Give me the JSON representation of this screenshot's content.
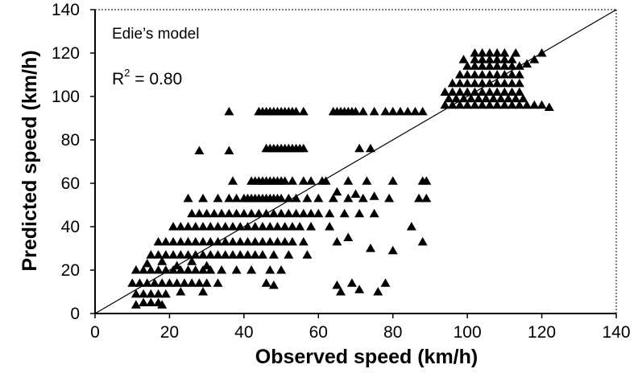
{
  "chart_data": {
    "type": "scatter",
    "annotation_model": "Edie’s model",
    "annotation_r2_prefix": "R",
    "annotation_r2_sup": "2",
    "annotation_r2_value": " = 0.80",
    "xlabel": "Observed speed  (km/h)",
    "ylabel": "Predicted speed (km/h)",
    "xlim": [
      0,
      140
    ],
    "ylim": [
      0,
      140
    ],
    "xticks": [
      0,
      20,
      40,
      60,
      80,
      100,
      120,
      140
    ],
    "yticks": [
      0,
      20,
      40,
      60,
      80,
      100,
      120,
      140
    ],
    "grid": false,
    "reference_line": {
      "from": [
        0,
        0
      ],
      "to": [
        140,
        140
      ]
    },
    "marker": "triangle",
    "colors": {
      "marker": "#000000",
      "axis": "#000000",
      "line": "#000000"
    },
    "series": [
      {
        "points": [
          [
            36,
            93
          ],
          [
            44,
            93
          ],
          [
            45,
            93
          ],
          [
            46,
            93
          ],
          [
            47,
            93
          ],
          [
            48,
            93
          ],
          [
            49,
            93
          ],
          [
            50,
            93
          ],
          [
            51,
            93
          ],
          [
            52,
            93
          ],
          [
            53,
            93
          ],
          [
            54,
            93
          ],
          [
            56,
            93
          ],
          [
            64,
            93
          ],
          [
            65,
            93
          ],
          [
            66,
            93
          ],
          [
            67,
            93
          ],
          [
            68,
            93
          ],
          [
            69,
            93
          ],
          [
            70,
            93
          ],
          [
            72,
            93
          ],
          [
            75,
            93
          ],
          [
            78,
            93
          ],
          [
            80,
            93
          ],
          [
            82,
            93
          ],
          [
            84,
            93
          ],
          [
            86,
            93
          ],
          [
            88,
            93
          ],
          [
            28,
            75
          ],
          [
            36,
            75
          ],
          [
            46,
            76
          ],
          [
            47,
            76
          ],
          [
            48,
            76
          ],
          [
            49,
            76
          ],
          [
            50,
            76
          ],
          [
            51,
            76
          ],
          [
            52,
            76
          ],
          [
            53,
            76
          ],
          [
            54,
            76
          ],
          [
            55,
            76
          ],
          [
            56,
            76
          ],
          [
            71,
            76
          ],
          [
            74,
            76
          ],
          [
            37,
            61
          ],
          [
            42,
            61
          ],
          [
            43,
            61
          ],
          [
            44,
            61
          ],
          [
            45,
            61
          ],
          [
            46,
            61
          ],
          [
            47,
            61
          ],
          [
            48,
            61
          ],
          [
            49,
            61
          ],
          [
            50,
            61
          ],
          [
            51,
            61
          ],
          [
            53,
            61
          ],
          [
            56,
            61
          ],
          [
            58,
            61
          ],
          [
            61,
            61
          ],
          [
            62,
            61
          ],
          [
            68,
            61
          ],
          [
            73,
            61
          ],
          [
            80,
            61
          ],
          [
            88,
            61
          ],
          [
            89,
            61
          ],
          [
            25,
            53
          ],
          [
            29,
            53
          ],
          [
            33,
            53
          ],
          [
            36,
            53
          ],
          [
            38,
            53
          ],
          [
            40,
            53
          ],
          [
            41,
            53
          ],
          [
            42,
            53
          ],
          [
            43,
            53
          ],
          [
            44,
            53
          ],
          [
            45,
            53
          ],
          [
            46,
            53
          ],
          [
            47,
            53
          ],
          [
            48,
            53
          ],
          [
            49,
            53
          ],
          [
            50,
            53
          ],
          [
            52,
            53
          ],
          [
            54,
            53
          ],
          [
            57,
            53
          ],
          [
            60,
            53
          ],
          [
            64,
            53
          ],
          [
            68,
            53
          ],
          [
            72,
            53
          ],
          [
            79,
            53
          ],
          [
            87,
            53
          ],
          [
            89,
            53
          ],
          [
            65,
            56
          ],
          [
            70,
            55
          ],
          [
            75,
            54
          ],
          [
            26,
            46
          ],
          [
            28,
            46
          ],
          [
            30,
            46
          ],
          [
            32,
            46
          ],
          [
            34,
            46
          ],
          [
            36,
            46
          ],
          [
            38,
            46
          ],
          [
            40,
            46
          ],
          [
            42,
            46
          ],
          [
            44,
            46
          ],
          [
            46,
            46
          ],
          [
            48,
            46
          ],
          [
            50,
            46
          ],
          [
            52,
            46
          ],
          [
            54,
            46
          ],
          [
            56,
            46
          ],
          [
            58,
            46
          ],
          [
            60,
            46
          ],
          [
            63,
            46
          ],
          [
            67,
            46
          ],
          [
            71,
            46
          ],
          [
            75,
            46
          ],
          [
            21,
            40
          ],
          [
            23,
            40
          ],
          [
            25,
            40
          ],
          [
            27,
            40
          ],
          [
            29,
            40
          ],
          [
            31,
            40
          ],
          [
            33,
            40
          ],
          [
            35,
            40
          ],
          [
            37,
            40
          ],
          [
            39,
            40
          ],
          [
            41,
            40
          ],
          [
            43,
            40
          ],
          [
            45,
            40
          ],
          [
            47,
            40
          ],
          [
            49,
            40
          ],
          [
            51,
            40
          ],
          [
            53,
            40
          ],
          [
            55,
            40
          ],
          [
            58,
            40
          ],
          [
            63,
            40
          ],
          [
            85,
            40
          ],
          [
            17,
            33
          ],
          [
            19,
            33
          ],
          [
            21,
            33
          ],
          [
            23,
            33
          ],
          [
            25,
            33
          ],
          [
            27,
            33
          ],
          [
            29,
            33
          ],
          [
            31,
            33
          ],
          [
            33,
            33
          ],
          [
            35,
            33
          ],
          [
            37,
            33
          ],
          [
            39,
            33
          ],
          [
            41,
            33
          ],
          [
            43,
            33
          ],
          [
            45,
            33
          ],
          [
            47,
            33
          ],
          [
            49,
            33
          ],
          [
            51,
            33
          ],
          [
            53,
            33
          ],
          [
            56,
            33
          ],
          [
            65,
            33
          ],
          [
            88,
            33
          ],
          [
            68,
            35
          ],
          [
            15,
            27
          ],
          [
            17,
            27
          ],
          [
            19,
            27
          ],
          [
            21,
            27
          ],
          [
            23,
            27
          ],
          [
            25,
            27
          ],
          [
            27,
            27
          ],
          [
            29,
            27
          ],
          [
            31,
            27
          ],
          [
            33,
            27
          ],
          [
            35,
            27
          ],
          [
            37,
            27
          ],
          [
            39,
            27
          ],
          [
            41,
            27
          ],
          [
            43,
            27
          ],
          [
            45,
            27
          ],
          [
            48,
            27
          ],
          [
            52,
            27
          ],
          [
            57,
            27
          ],
          [
            74,
            30
          ],
          [
            80,
            29
          ],
          [
            11,
            20
          ],
          [
            13,
            20
          ],
          [
            15,
            20
          ],
          [
            17,
            20
          ],
          [
            19,
            20
          ],
          [
            21,
            20
          ],
          [
            23,
            20
          ],
          [
            25,
            20
          ],
          [
            27,
            20
          ],
          [
            29,
            20
          ],
          [
            31,
            20
          ],
          [
            34,
            20
          ],
          [
            38,
            20
          ],
          [
            42,
            20
          ],
          [
            47,
            20
          ],
          [
            50,
            20
          ],
          [
            14,
            23
          ],
          [
            18,
            24
          ],
          [
            22,
            22
          ],
          [
            26,
            24
          ],
          [
            30,
            22
          ],
          [
            10,
            14
          ],
          [
            12,
            14
          ],
          [
            14,
            14
          ],
          [
            16,
            14
          ],
          [
            18,
            14
          ],
          [
            20,
            14
          ],
          [
            22,
            14
          ],
          [
            24,
            14
          ],
          [
            26,
            14
          ],
          [
            28,
            14
          ],
          [
            30,
            14
          ],
          [
            33,
            14
          ],
          [
            46,
            14
          ],
          [
            48,
            13
          ],
          [
            11,
            9
          ],
          [
            13,
            9
          ],
          [
            15,
            9
          ],
          [
            17,
            9
          ],
          [
            19,
            9
          ],
          [
            23,
            10
          ],
          [
            29,
            10
          ],
          [
            65,
            13
          ],
          [
            66,
            10
          ],
          [
            69,
            14
          ],
          [
            71,
            11
          ],
          [
            76,
            10
          ],
          [
            78,
            14
          ],
          [
            11,
            4
          ],
          [
            13,
            5
          ],
          [
            15,
            5
          ],
          [
            17,
            5
          ],
          [
            18,
            4
          ],
          [
            94,
            96
          ],
          [
            96,
            96
          ],
          [
            98,
            96
          ],
          [
            100,
            96
          ],
          [
            102,
            96
          ],
          [
            104,
            96
          ],
          [
            106,
            96
          ],
          [
            108,
            96
          ],
          [
            110,
            96
          ],
          [
            112,
            96
          ],
          [
            114,
            96
          ],
          [
            116,
            96
          ],
          [
            118,
            96
          ],
          [
            120,
            96
          ],
          [
            122,
            95
          ],
          [
            95,
            99
          ],
          [
            97,
            99
          ],
          [
            99,
            99
          ],
          [
            101,
            99
          ],
          [
            103,
            99
          ],
          [
            105,
            99
          ],
          [
            107,
            99
          ],
          [
            109,
            99
          ],
          [
            111,
            99
          ],
          [
            113,
            99
          ],
          [
            115,
            99
          ],
          [
            94,
            102
          ],
          [
            96,
            102
          ],
          [
            98,
            102
          ],
          [
            100,
            102
          ],
          [
            102,
            102
          ],
          [
            104,
            102
          ],
          [
            106,
            102
          ],
          [
            108,
            102
          ],
          [
            110,
            102
          ],
          [
            112,
            102
          ],
          [
            114,
            102
          ],
          [
            96,
            106
          ],
          [
            98,
            106
          ],
          [
            100,
            106
          ],
          [
            102,
            106
          ],
          [
            104,
            106
          ],
          [
            106,
            106
          ],
          [
            108,
            106
          ],
          [
            110,
            106
          ],
          [
            112,
            106
          ],
          [
            114,
            106
          ],
          [
            98,
            110
          ],
          [
            100,
            110
          ],
          [
            102,
            110
          ],
          [
            104,
            110
          ],
          [
            106,
            110
          ],
          [
            108,
            110
          ],
          [
            110,
            110
          ],
          [
            112,
            110
          ],
          [
            114,
            110
          ],
          [
            100,
            114
          ],
          [
            102,
            114
          ],
          [
            104,
            114
          ],
          [
            106,
            114
          ],
          [
            108,
            114
          ],
          [
            110,
            114
          ],
          [
            112,
            114
          ],
          [
            114,
            114
          ],
          [
            116,
            115
          ],
          [
            99,
            117
          ],
          [
            102,
            117
          ],
          [
            104,
            117
          ],
          [
            106,
            117
          ],
          [
            108,
            117
          ],
          [
            110,
            117
          ],
          [
            112,
            117
          ],
          [
            118,
            117
          ],
          [
            102,
            120
          ],
          [
            104,
            120
          ],
          [
            106,
            120
          ],
          [
            108,
            120
          ],
          [
            110,
            120
          ],
          [
            113,
            120
          ],
          [
            120,
            120
          ]
        ]
      }
    ]
  }
}
